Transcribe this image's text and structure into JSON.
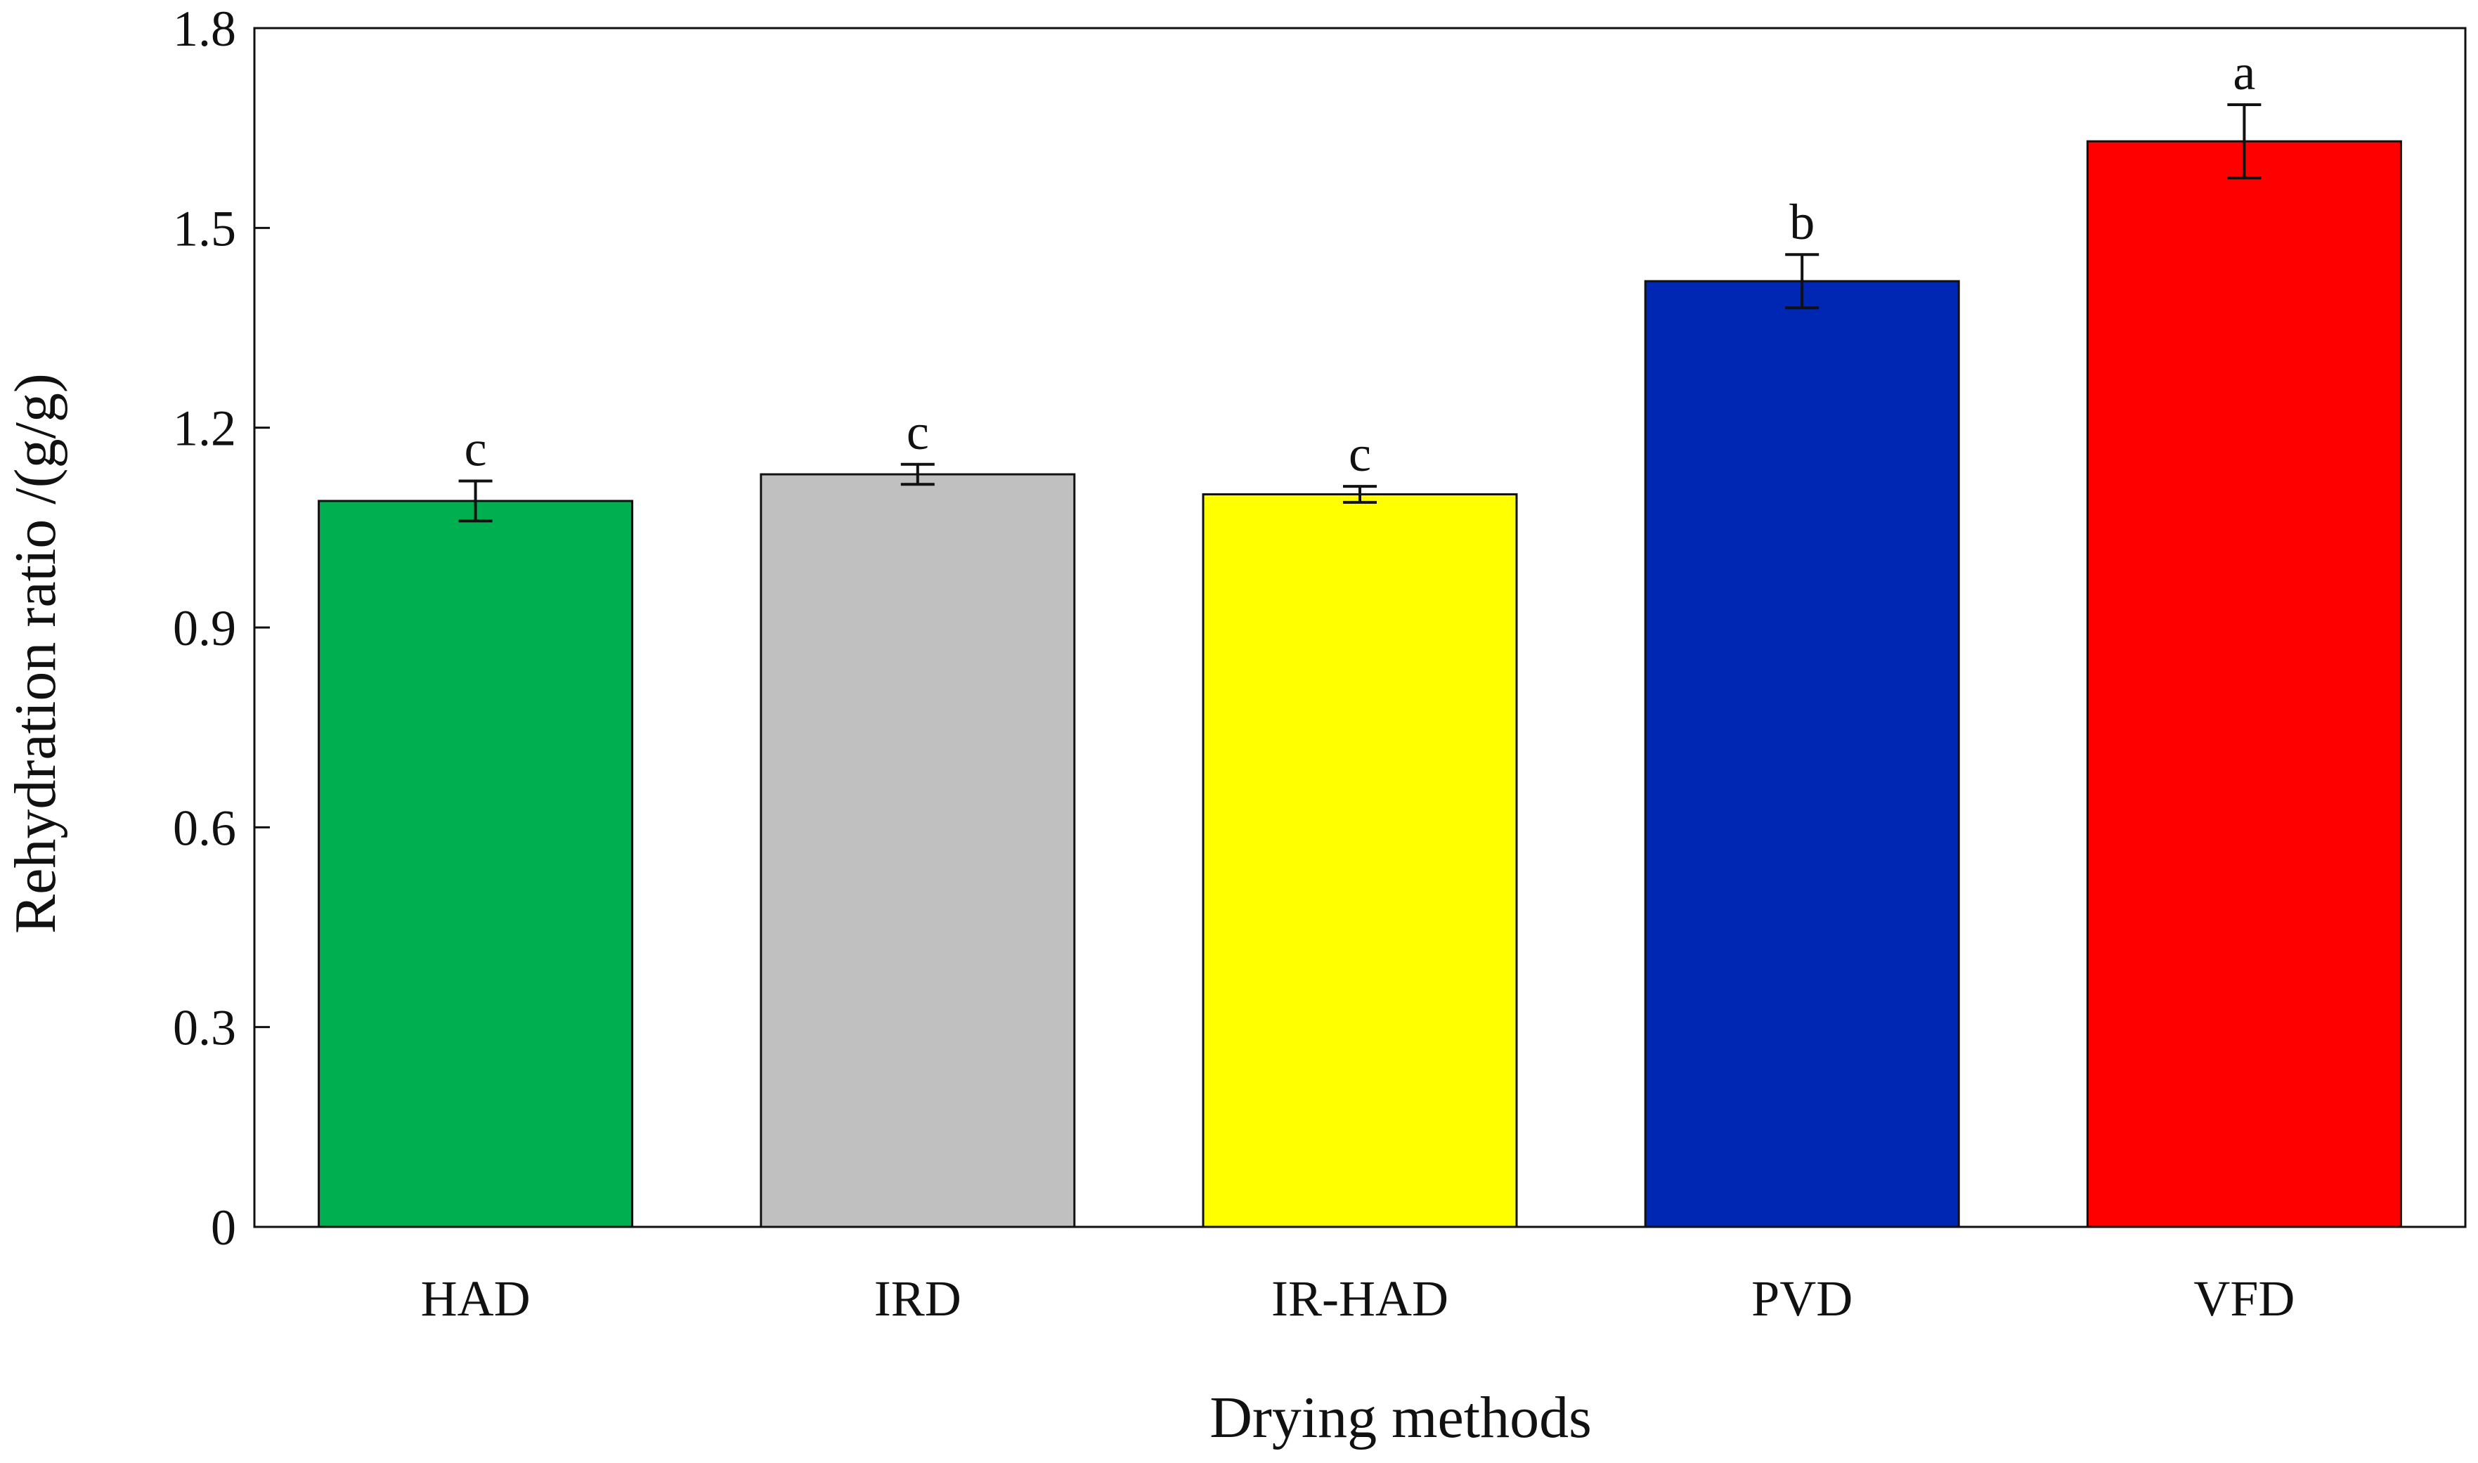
{
  "chart_data": {
    "type": "bar",
    "title": "",
    "xlabel": "Drying methods",
    "ylabel": "Rehydration ratio /(g/g)",
    "ylim": [
      0,
      1.8
    ],
    "yticks": [
      0,
      0.3,
      0.6,
      0.9,
      1.2,
      1.5,
      1.8
    ],
    "ytick_labels": [
      "0",
      "0.3",
      "0.6",
      "0.9",
      "1.2",
      "1.5",
      "1.8"
    ],
    "grid": false,
    "categories": [
      "HAD",
      "IRD",
      "IR-HAD",
      "PVD",
      "VFD"
    ],
    "values": [
      1.09,
      1.13,
      1.1,
      1.42,
      1.63
    ],
    "errors": [
      0.03,
      0.015,
      0.012,
      0.04,
      0.055
    ],
    "significance_labels": [
      "c",
      "c",
      "c",
      "b",
      "a"
    ],
    "colors": [
      "#00B050",
      "#C0C0C0",
      "#FFFF00",
      "#0026B4",
      "#FF0000"
    ]
  }
}
